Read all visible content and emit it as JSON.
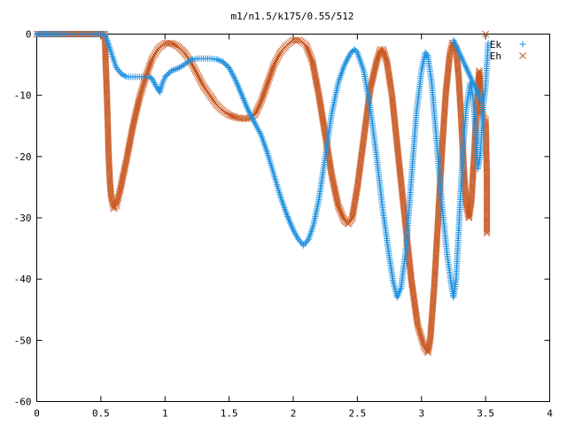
{
  "chart_data": {
    "type": "scatter",
    "title": "m1/n1.5/k175/0.55/512",
    "xlabel": "",
    "ylabel": "",
    "xlim": [
      0,
      4
    ],
    "ylim": [
      -60,
      0
    ],
    "x_ticks": [
      "0",
      "0.5",
      "1",
      "1.5",
      "2",
      "2.5",
      "3",
      "3.5",
      "4"
    ],
    "y_ticks": [
      "0",
      "-10",
      "-20",
      "-30",
      "-40",
      "-50",
      "-60"
    ],
    "grid": false,
    "legend_position": "top-right",
    "series": [
      {
        "name": "Ek",
        "marker": "plus",
        "color": "#1e90e0",
        "points": [
          [
            0.0,
            0.0
          ],
          [
            0.53,
            0.0
          ],
          [
            0.55,
            -1.0
          ],
          [
            0.58,
            -3.0
          ],
          [
            0.62,
            -5.5
          ],
          [
            0.66,
            -6.5
          ],
          [
            0.7,
            -7.0
          ],
          [
            0.75,
            -7.0
          ],
          [
            0.8,
            -7.0
          ],
          [
            0.85,
            -7.0
          ],
          [
            0.88,
            -7.0
          ],
          [
            0.9,
            -7.3
          ],
          [
            0.93,
            -8.5
          ],
          [
            0.96,
            -9.5
          ],
          [
            0.98,
            -8.0
          ],
          [
            1.0,
            -7.0
          ],
          [
            1.03,
            -6.4
          ],
          [
            1.05,
            -6.0
          ],
          [
            1.1,
            -5.6
          ],
          [
            1.15,
            -5.0
          ],
          [
            1.2,
            -4.2
          ],
          [
            1.25,
            -4.0
          ],
          [
            1.3,
            -4.0
          ],
          [
            1.35,
            -4.0
          ],
          [
            1.4,
            -4.1
          ],
          [
            1.45,
            -4.5
          ],
          [
            1.5,
            -5.5
          ],
          [
            1.55,
            -7.5
          ],
          [
            1.6,
            -10.0
          ],
          [
            1.65,
            -12.5
          ],
          [
            1.7,
            -14.5
          ],
          [
            1.75,
            -16.5
          ],
          [
            1.8,
            -19.5
          ],
          [
            1.85,
            -23.0
          ],
          [
            1.9,
            -26.5
          ],
          [
            1.95,
            -29.5
          ],
          [
            2.0,
            -32.0
          ],
          [
            2.04,
            -33.5
          ],
          [
            2.08,
            -34.5
          ],
          [
            2.12,
            -33.5
          ],
          [
            2.16,
            -31.0
          ],
          [
            2.2,
            -27.0
          ],
          [
            2.25,
            -20.0
          ],
          [
            2.3,
            -13.0
          ],
          [
            2.35,
            -8.0
          ],
          [
            2.4,
            -5.0
          ],
          [
            2.45,
            -3.0
          ],
          [
            2.48,
            -2.5
          ],
          [
            2.5,
            -3.0
          ],
          [
            2.55,
            -6.0
          ],
          [
            2.6,
            -12.0
          ],
          [
            2.65,
            -20.0
          ],
          [
            2.7,
            -29.0
          ],
          [
            2.75,
            -36.5
          ],
          [
            2.78,
            -40.5
          ],
          [
            2.81,
            -43.0
          ],
          [
            2.84,
            -41.5
          ],
          [
            2.88,
            -35.0
          ],
          [
            2.92,
            -24.0
          ],
          [
            2.96,
            -13.0
          ],
          [
            3.0,
            -6.0
          ],
          [
            3.03,
            -3.0
          ],
          [
            3.05,
            -3.5
          ],
          [
            3.08,
            -8.0
          ],
          [
            3.12,
            -18.0
          ],
          [
            3.16,
            -28.0
          ],
          [
            3.2,
            -36.0
          ],
          [
            3.23,
            -40.5
          ],
          [
            3.25,
            -43.0
          ],
          [
            3.27,
            -40.0
          ],
          [
            3.3,
            -28.0
          ],
          [
            3.32,
            -20.0
          ],
          [
            3.35,
            -12.0
          ],
          [
            3.38,
            -8.0
          ],
          [
            3.4,
            -10.0
          ],
          [
            3.42,
            -15.0
          ],
          [
            3.44,
            -22.0
          ],
          [
            3.46,
            -19.5
          ],
          [
            3.48,
            -12.0
          ],
          [
            3.5,
            -8.5
          ],
          [
            3.52,
            -1.5
          ],
          [
            3.25,
            -1.0
          ],
          [
            3.47,
            -11.0
          ]
        ]
      },
      {
        "name": "Eh",
        "marker": "cross",
        "color": "#c8561e",
        "points": [
          [
            0.0,
            0.0
          ],
          [
            0.53,
            0.0
          ],
          [
            0.55,
            -12.0
          ],
          [
            0.56,
            -19.5
          ],
          [
            0.57,
            -24.0
          ],
          [
            0.58,
            -26.5
          ],
          [
            0.6,
            -28.5
          ],
          [
            0.62,
            -28.0
          ],
          [
            0.65,
            -25.5
          ],
          [
            0.7,
            -20.5
          ],
          [
            0.75,
            -15.0
          ],
          [
            0.8,
            -10.5
          ],
          [
            0.85,
            -7.0
          ],
          [
            0.9,
            -4.0
          ],
          [
            0.95,
            -2.3
          ],
          [
            1.0,
            -1.5
          ],
          [
            1.05,
            -1.5
          ],
          [
            1.1,
            -2.0
          ],
          [
            1.15,
            -3.0
          ],
          [
            1.2,
            -4.5
          ],
          [
            1.25,
            -6.5
          ],
          [
            1.3,
            -8.5
          ],
          [
            1.35,
            -10.0
          ],
          [
            1.4,
            -11.5
          ],
          [
            1.45,
            -12.5
          ],
          [
            1.5,
            -13.2
          ],
          [
            1.55,
            -13.6
          ],
          [
            1.6,
            -13.8
          ],
          [
            1.65,
            -13.8
          ],
          [
            1.7,
            -13.2
          ],
          [
            1.75,
            -11.0
          ],
          [
            1.8,
            -8.0
          ],
          [
            1.85,
            -5.0
          ],
          [
            1.9,
            -3.0
          ],
          [
            1.95,
            -1.8
          ],
          [
            2.0,
            -1.0
          ],
          [
            2.05,
            -1.0
          ],
          [
            2.1,
            -1.8
          ],
          [
            2.15,
            -4.5
          ],
          [
            2.2,
            -10.0
          ],
          [
            2.25,
            -16.5
          ],
          [
            2.3,
            -23.0
          ],
          [
            2.35,
            -28.0
          ],
          [
            2.4,
            -30.5
          ],
          [
            2.43,
            -31.0
          ],
          [
            2.46,
            -30.0
          ],
          [
            2.5,
            -25.0
          ],
          [
            2.55,
            -17.0
          ],
          [
            2.6,
            -9.0
          ],
          [
            2.65,
            -4.5
          ],
          [
            2.68,
            -2.5
          ],
          [
            2.7,
            -2.5
          ],
          [
            2.73,
            -4.5
          ],
          [
            2.77,
            -10.0
          ],
          [
            2.82,
            -20.0
          ],
          [
            2.87,
            -30.0
          ],
          [
            2.92,
            -40.0
          ],
          [
            2.97,
            -47.5
          ],
          [
            3.02,
            -51.0
          ],
          [
            3.05,
            -52.0
          ],
          [
            3.07,
            -49.5
          ],
          [
            3.1,
            -41.0
          ],
          [
            3.13,
            -30.0
          ],
          [
            3.16,
            -19.0
          ],
          [
            3.19,
            -9.5
          ],
          [
            3.22,
            -3.5
          ],
          [
            3.24,
            -1.5
          ],
          [
            3.27,
            -2.5
          ],
          [
            3.29,
            -7.0
          ],
          [
            3.31,
            -14.0
          ],
          [
            3.33,
            -22.0
          ],
          [
            3.35,
            -28.0
          ],
          [
            3.37,
            -30.0
          ],
          [
            3.39,
            -27.0
          ],
          [
            3.41,
            -20.0
          ],
          [
            3.43,
            -12.0
          ],
          [
            3.45,
            -6.0
          ],
          [
            3.47,
            -12.5
          ],
          [
            3.48,
            -13.5
          ],
          [
            3.5,
            -14.0
          ],
          [
            3.51,
            -23.0
          ],
          [
            3.51,
            -32.5
          ],
          [
            3.5,
            0.0
          ]
        ]
      }
    ]
  }
}
